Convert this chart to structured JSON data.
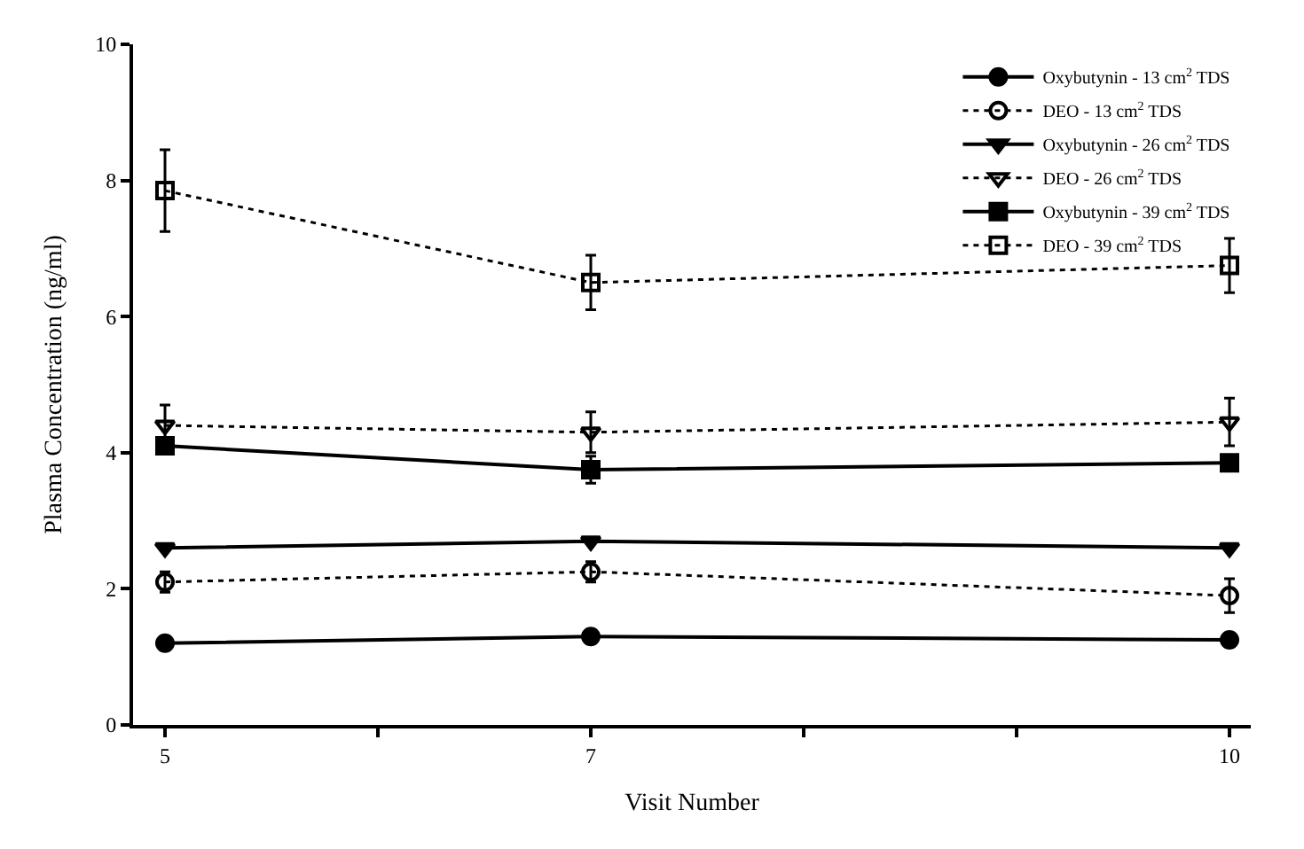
{
  "chart_data": {
    "type": "line",
    "xlabel": "Visit Number",
    "ylabel": "Plasma Concentration (ng/ml)",
    "x": [
      5,
      7,
      10
    ],
    "xlim": [
      4.85,
      10.1
    ],
    "xticks": [
      5,
      {
        "value": 6,
        "label": null
      },
      7,
      {
        "value": 8,
        "label": null
      },
      {
        "value": 9,
        "label": null
      },
      10
    ],
    "ylim": [
      0,
      10
    ],
    "yticks": [
      0,
      2,
      4,
      6,
      8,
      10
    ],
    "legend": "top right",
    "series": [
      {
        "name": "Oxybutynin - 13 cm$^{2}$ TDS",
        "color": "#000000",
        "values": [
          1.2,
          1.3,
          1.25
        ],
        "marker": "circle",
        "line_style": "solid"
      },
      {
        "name": "DEO - 13 cm$^{2}$ TDS",
        "color": "#000000",
        "values": [
          2.1,
          2.25,
          1.9
        ],
        "errors": [
          0.15,
          0.15,
          0.25
        ],
        "marker": "circle",
        "line_style": "dotted"
      },
      {
        "name": "Oxybutynin - 26 cm$^{2}$ TDS",
        "color": "#000000",
        "values": [
          2.6,
          2.7,
          2.6
        ],
        "marker": "triangle",
        "line_style": "solid"
      },
      {
        "name": "DEO - 26 cm$^{2}$ TDS",
        "color": "#000000",
        "values": [
          4.4,
          4.3,
          4.45
        ],
        "errors": [
          0.3,
          0.3,
          0.35
        ],
        "marker": "triangle",
        "line_style": "dotted"
      },
      {
        "name": "Oxybutynin - 39 cm$^{2}$ TDS",
        "color": "#000000",
        "values": [
          4.1,
          3.75,
          3.85
        ],
        "errors": [
          null,
          0.2,
          null
        ],
        "marker": "square",
        "line_style": "solid"
      },
      {
        "name": "DEO - 39 cm$^{2}$ TDS",
        "color": "#000000",
        "values": [
          7.85,
          6.5,
          6.75
        ],
        "errors": [
          0.6,
          0.4,
          0.4
        ],
        "marker": "square",
        "line_style": "dotted"
      }
    ]
  }
}
